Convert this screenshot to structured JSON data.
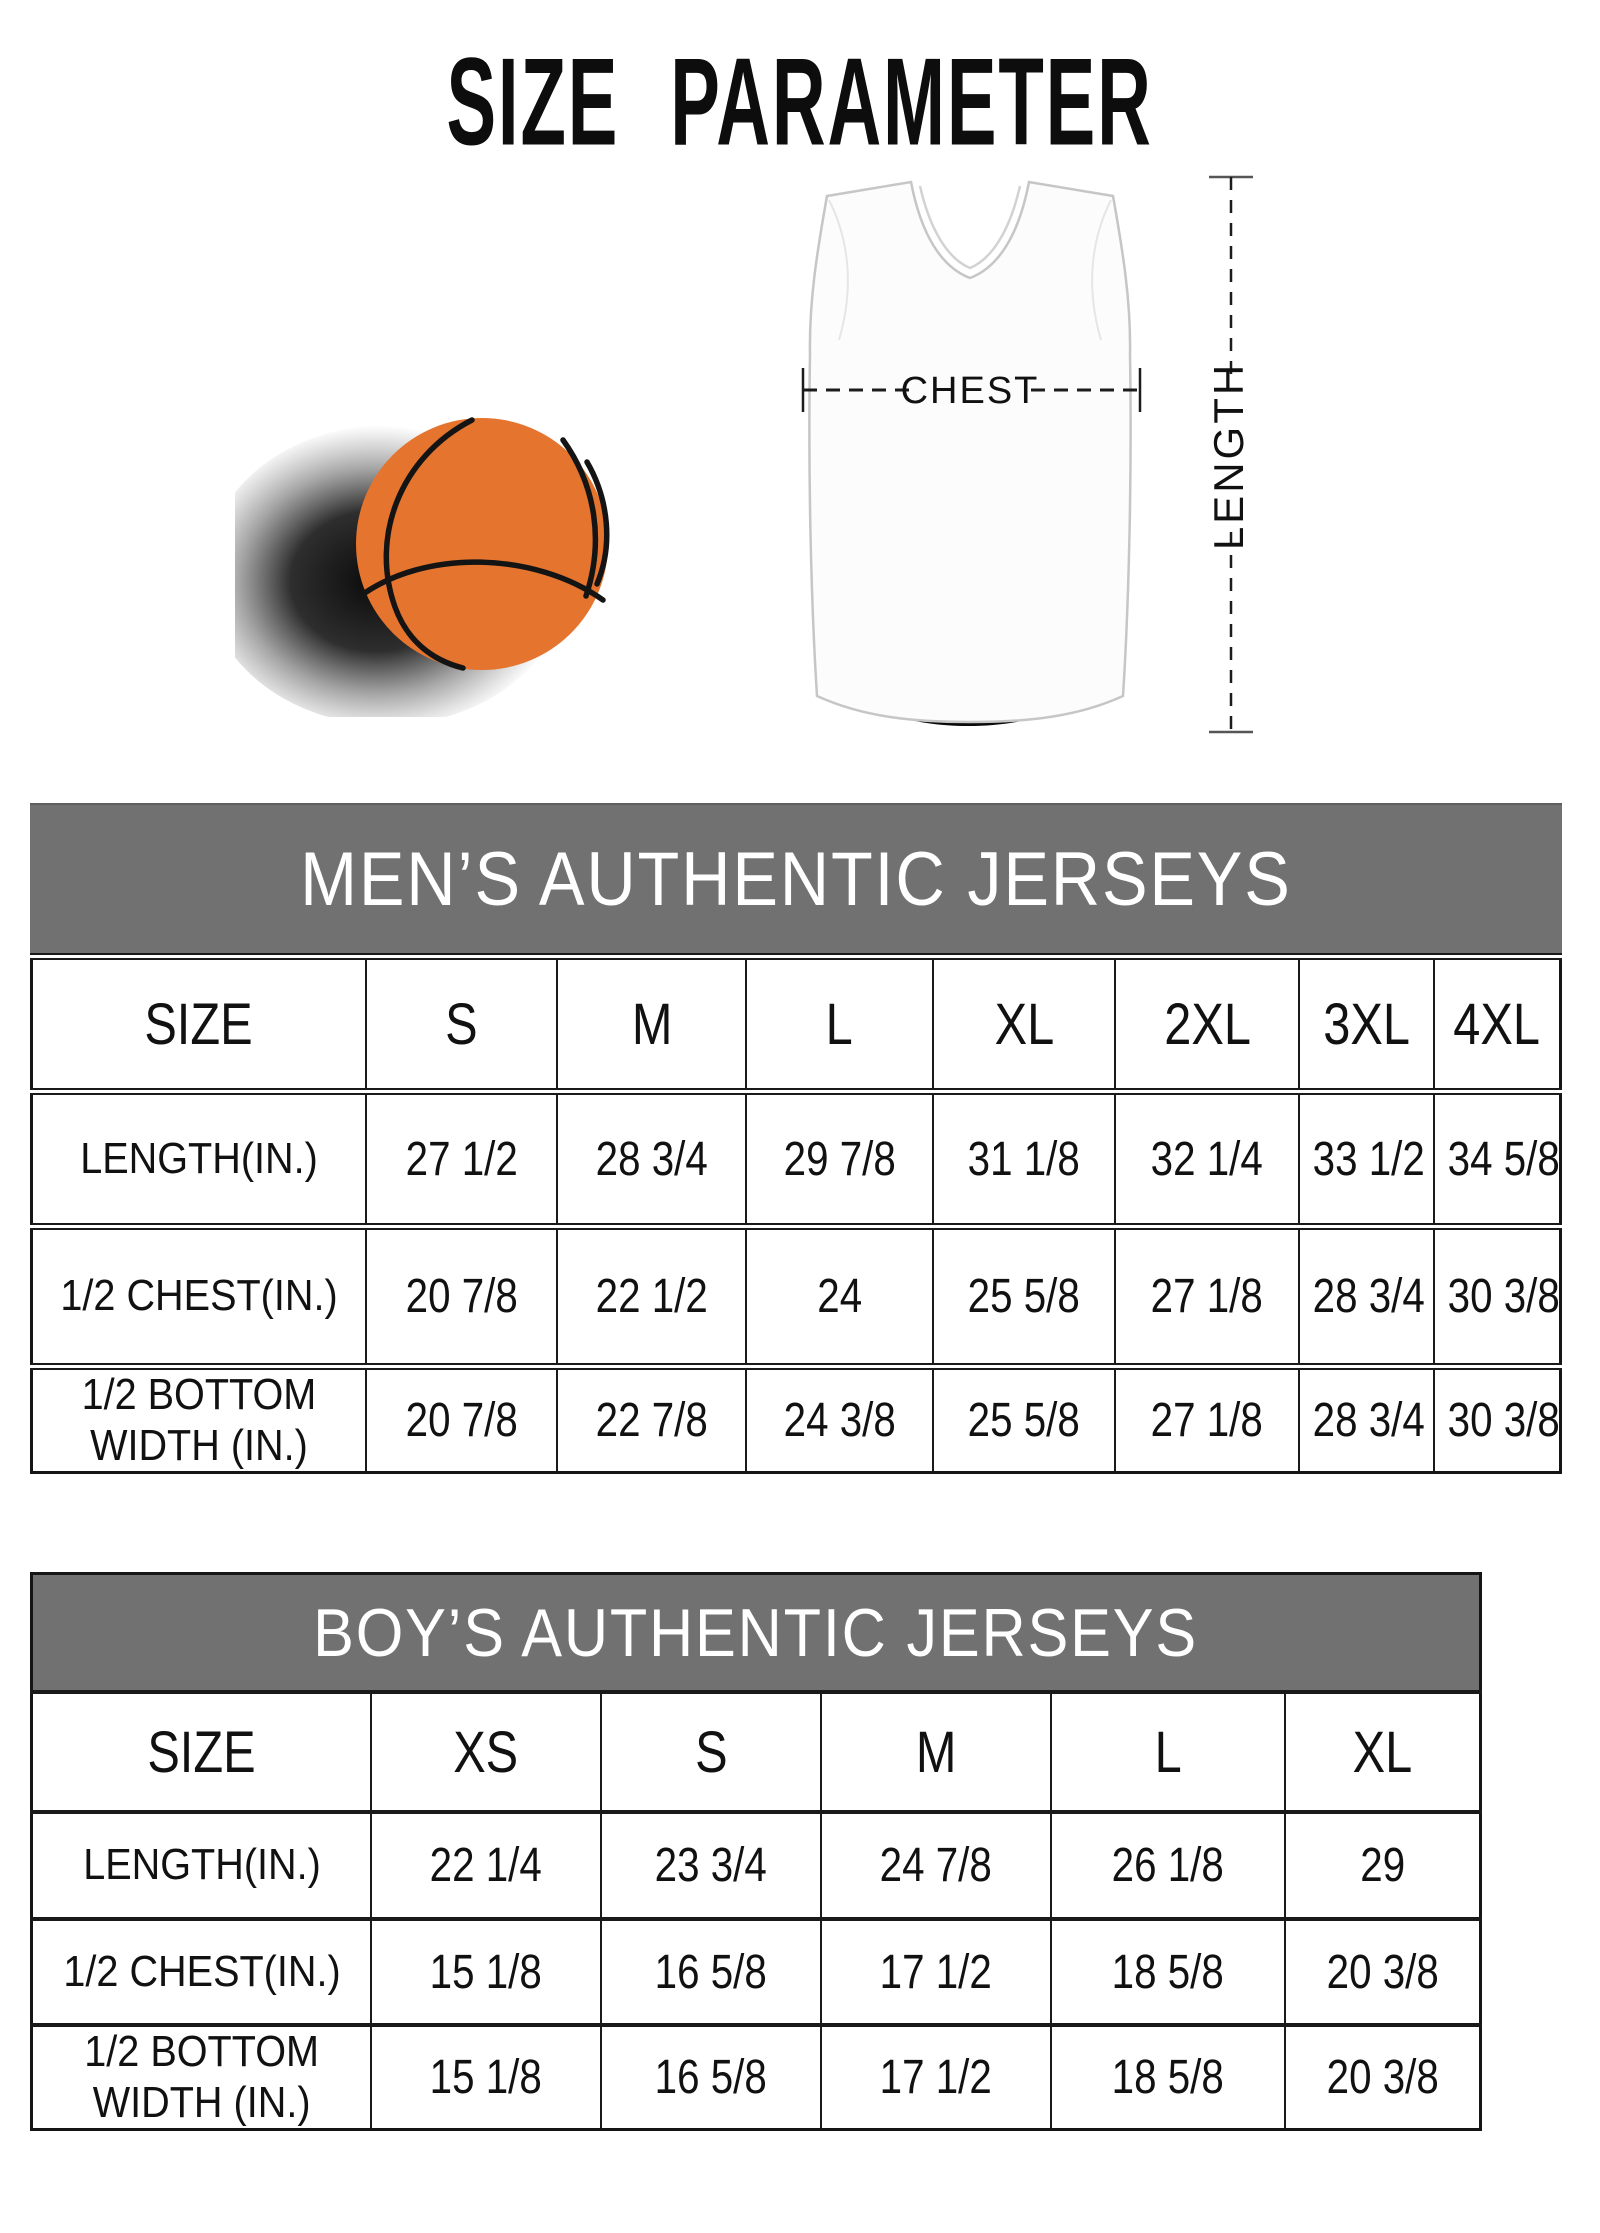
{
  "page": {
    "title": "SIZE PARAMETER"
  },
  "diagram": {
    "chest_label": "CHEST",
    "length_label": "LENGTH",
    "basketball_color": "#e4742e",
    "seam_color": "#141414",
    "jersey_outline_color": "#c6c6c6"
  },
  "colors": {
    "table_header_bg": "#717171",
    "table_header_text": "#ffffff",
    "table_border": "#1a1a1a",
    "page_bg": "#ffffff",
    "text": "#111111"
  },
  "mens_table": {
    "title": "MEN’S AUTHENTIC JERSEYS",
    "columns": [
      "SIZE",
      "S",
      "M",
      "L",
      "XL",
      "2XL",
      "3XL",
      "4XL"
    ],
    "rows": [
      {
        "label": "LENGTH(IN.)",
        "values": [
          "27 1/2",
          "28 3/4",
          "29 7/8",
          "31 1/8",
          "32 1/4",
          "33 1/2",
          "34 5/8"
        ]
      },
      {
        "label": "1/2 CHEST(IN.)",
        "values": [
          "20 7/8",
          "22 1/2",
          "24",
          "25 5/8",
          "27 1/8",
          "28 3/4",
          "30 3/8"
        ]
      },
      {
        "label": "1/2 BOTTOM WIDTH (IN.)",
        "values": [
          "20 7/8",
          "22 7/8",
          "24 3/8",
          "25 5/8",
          "27 1/8",
          "28 3/4",
          "30 3/8"
        ]
      }
    ]
  },
  "boys_table": {
    "title": "BOY’S AUTHENTIC JERSEYS",
    "columns": [
      "SIZE",
      "XS",
      "S",
      "M",
      "L",
      "XL"
    ],
    "rows": [
      {
        "label": "LENGTH(IN.)",
        "values": [
          "22 1/4",
          "23 3/4",
          "24 7/8",
          "26 1/8",
          "29"
        ]
      },
      {
        "label": "1/2 CHEST(IN.)",
        "values": [
          "15 1/8",
          "16 5/8",
          "17 1/2",
          "18 5/8",
          "20 3/8"
        ]
      },
      {
        "label": "1/2 BOTTOM WIDTH (IN.)",
        "values": [
          "15 1/8",
          "16 5/8",
          "17 1/2",
          "18 5/8",
          "20 3/8"
        ]
      }
    ]
  }
}
